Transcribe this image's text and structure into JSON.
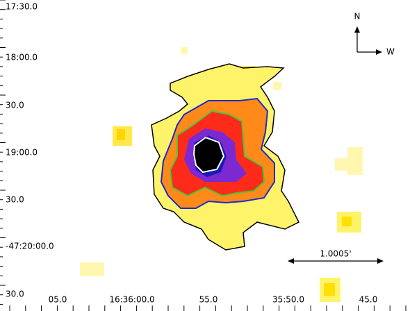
{
  "y_axis_labels": [
    "17:30.0",
    "18:00.0",
    "30.0",
    "19:00.0",
    "30.0",
    "-47:20:00.0",
    "30.0"
  ],
  "x_axis_labels": [
    "05.0",
    "16:36:00.0",
    "55.0",
    "35:50.0",
    "45.0"
  ],
  "compass": {
    "north": "N",
    "west": "W"
  },
  "scale_bar": {
    "label": "1.0005'"
  }
}
